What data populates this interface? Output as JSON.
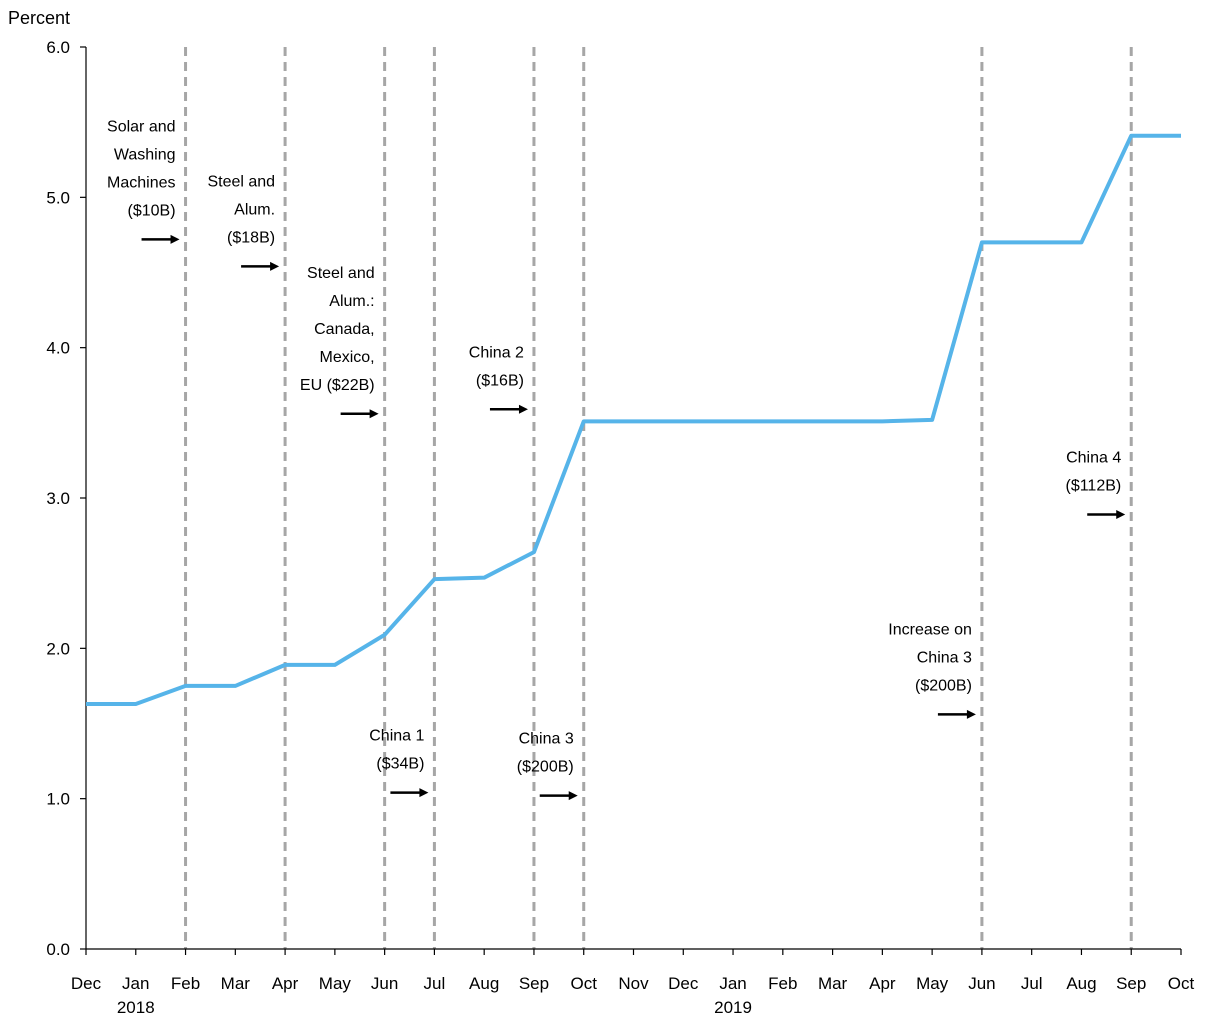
{
  "chart_data": {
    "type": "line",
    "title": "",
    "ylabel": "Percent",
    "xlabel": "",
    "ylim": [
      0,
      6
    ],
    "yticks": [
      "0.0",
      "1.0",
      "2.0",
      "3.0",
      "4.0",
      "5.0",
      "6.0"
    ],
    "categories": [
      "Dec",
      "Jan",
      "Feb",
      "Mar",
      "Apr",
      "May",
      "Jun",
      "Jul",
      "Aug",
      "Sep",
      "Oct",
      "Nov",
      "Dec",
      "Jan",
      "Feb",
      "Mar",
      "Apr",
      "May",
      "Jun",
      "Jul",
      "Aug",
      "Sep",
      "Oct"
    ],
    "year_labels": [
      {
        "label": "2018",
        "category_index": 1
      },
      {
        "label": "2019",
        "category_index": 13
      }
    ],
    "series": [
      {
        "color": "#56b4e9",
        "values": [
          1.63,
          1.63,
          1.75,
          1.75,
          1.89,
          1.89,
          2.09,
          2.46,
          2.47,
          2.64,
          3.51,
          3.51,
          3.51,
          3.51,
          3.51,
          3.51,
          3.51,
          3.52,
          4.7,
          4.7,
          4.7,
          5.41,
          5.41
        ]
      }
    ],
    "event_lines": [
      2,
      4,
      6,
      7,
      9,
      10,
      18,
      21
    ],
    "event_line_color": "#a6a6a6",
    "annotations": [
      {
        "lines": [
          "Solar and",
          "Washing",
          "Machines",
          "($10B)"
        ],
        "line_index": 2,
        "text_y": 4.88
      },
      {
        "lines": [
          "Steel and",
          "Alum.",
          "($18B)"
        ],
        "line_index": 4,
        "text_y": 4.7
      },
      {
        "lines": [
          "Steel and",
          "Alum.:",
          "Canada,",
          "Mexico,",
          "EU ($22B)"
        ],
        "line_index": 6,
        "text_y": 3.72
      },
      {
        "lines": [
          "China 1",
          "($34B)"
        ],
        "line_index": 7,
        "text_y": 1.2
      },
      {
        "lines": [
          "China 2",
          "($16B)"
        ],
        "line_index": 9,
        "text_y": 3.75
      },
      {
        "lines": [
          "China 3",
          "($200B)"
        ],
        "line_index": 10,
        "text_y": 1.18
      },
      {
        "lines": [
          "Increase on",
          "China 3",
          "($200B)"
        ],
        "line_index": 18,
        "text_y": 1.72
      },
      {
        "lines": [
          "China 4",
          "($112B)"
        ],
        "line_index": 21,
        "text_y": 3.05
      }
    ]
  }
}
